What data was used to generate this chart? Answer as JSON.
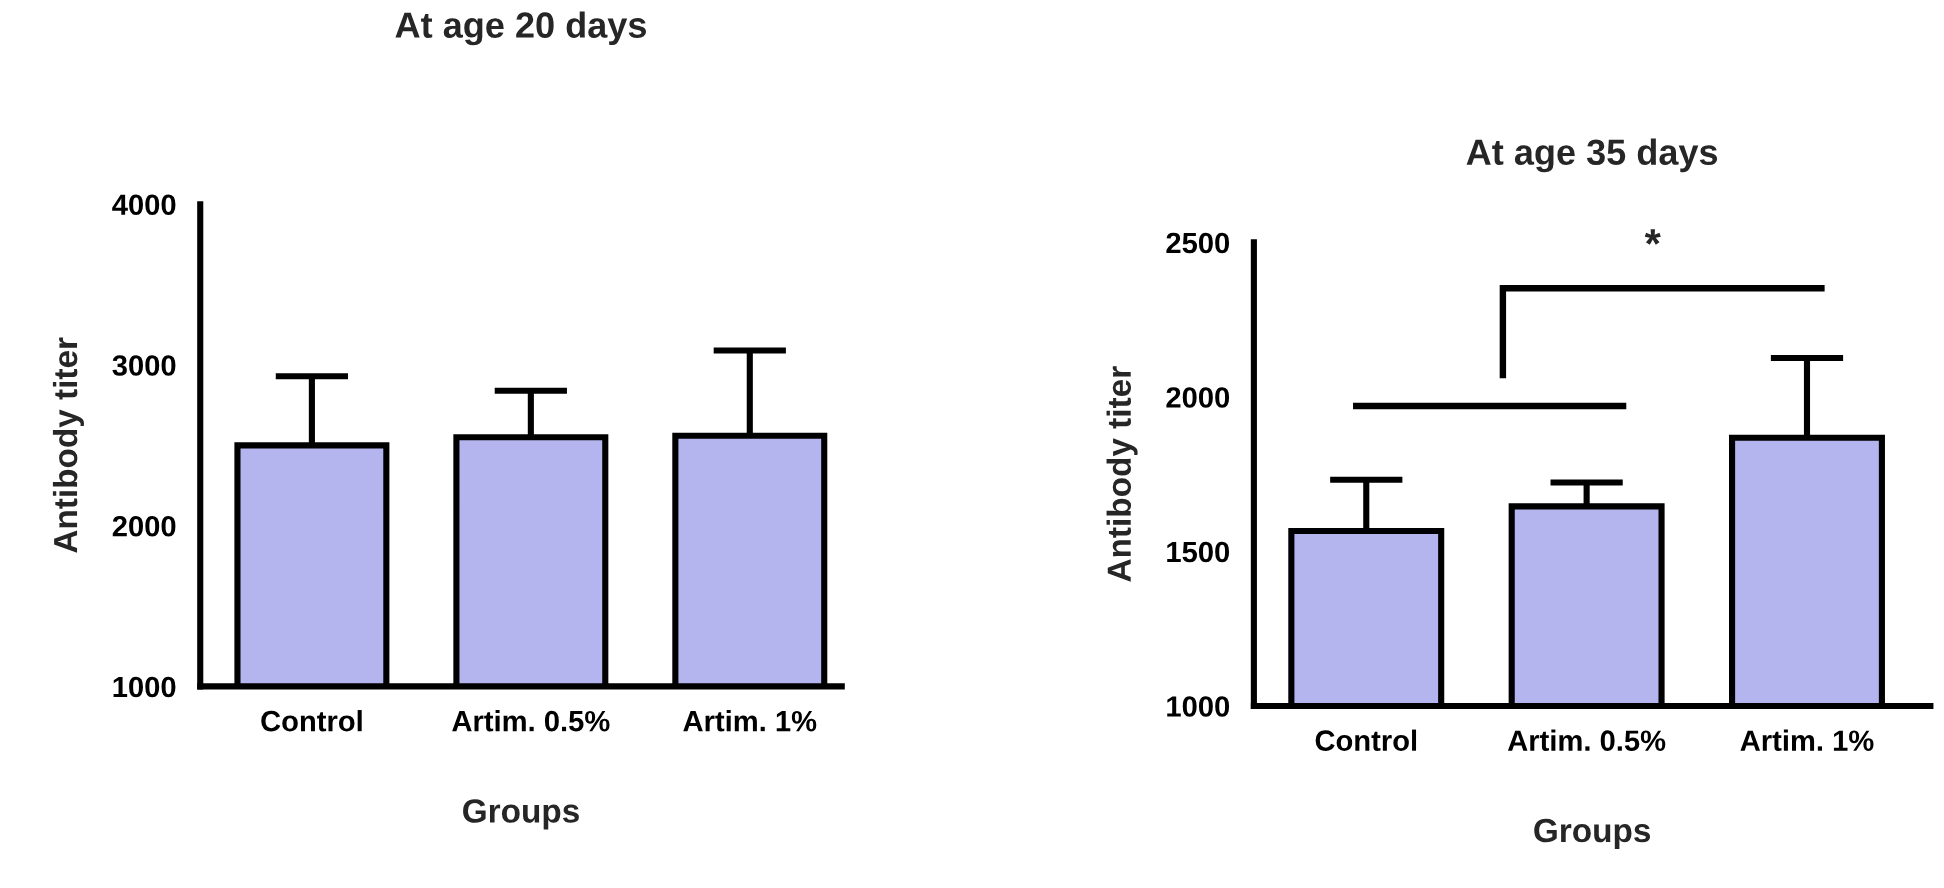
{
  "chart_data": [
    {
      "type": "bar",
      "title": "At age 20 days",
      "xlabel": "Groups",
      "ylabel": "Antibody titer",
      "categories": [
        "Control",
        "Artim. 0.5%",
        "Artim. 1%"
      ],
      "values": [
        2500,
        2550,
        2560
      ],
      "color": "#b4b4ee",
      "errors": [
        430,
        290,
        530
      ],
      "ylim": [
        1000,
        4000
      ],
      "yticks": [
        1000,
        2000,
        3000,
        4000
      ],
      "grid": false
    },
    {
      "type": "bar",
      "title": "At age 35 days",
      "xlabel": "Groups",
      "ylabel": "Antibody titer",
      "categories": [
        "Control",
        "Artim. 0.5%",
        "Artim. 1%"
      ],
      "values": [
        1566,
        1646,
        1868
      ],
      "color": "#b4b4ee",
      "errors": [
        166,
        77,
        258
      ],
      "ylim": [
        1000,
        2500
      ],
      "yticks": [
        1000,
        1500,
        2000,
        2500
      ],
      "grid": false,
      "annotations": [
        "*"
      ]
    }
  ]
}
